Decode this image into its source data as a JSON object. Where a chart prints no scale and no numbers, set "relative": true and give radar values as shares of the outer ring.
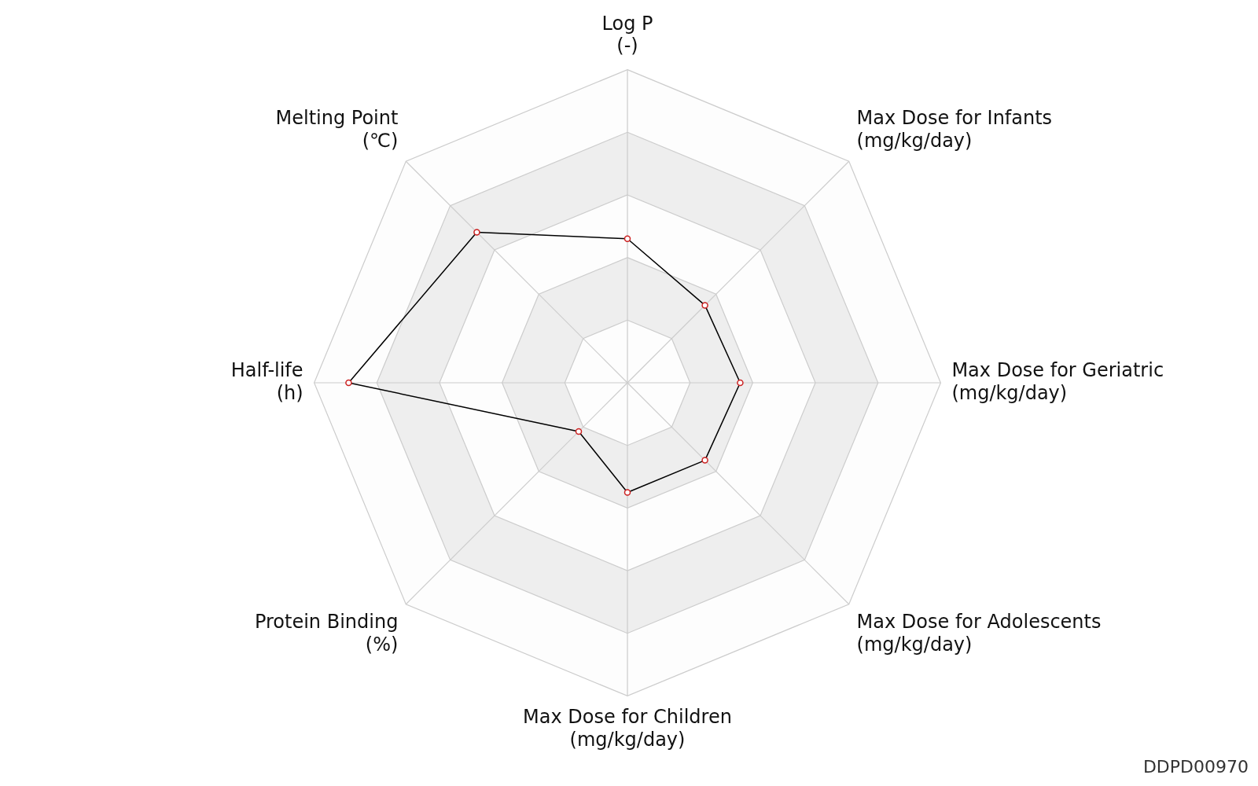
{
  "chart_data": {
    "type": "radar",
    "relative": true,
    "marker": "circle",
    "legend": false,
    "categories": [
      "Log P\n(-)",
      "Max Dose for Infants\n(mg/kg/day)",
      "Max Dose for Geriatric\n(mg/kg/day)",
      "Max Dose for Adolescents\n(mg/kg/day)",
      "Max Dose for Children\n(mg/kg/day)",
      "Protein Binding\n(%)",
      "Half-life\n(h)",
      "Melting Point\n(℃)"
    ],
    "series": [
      {
        "color": "#000000",
        "values": [
          0.46,
          0.35,
          0.36,
          0.35,
          0.35,
          0.22,
          0.89,
          0.68
        ]
      }
    ],
    "annotations": [
      "DDPD00970"
    ]
  }
}
